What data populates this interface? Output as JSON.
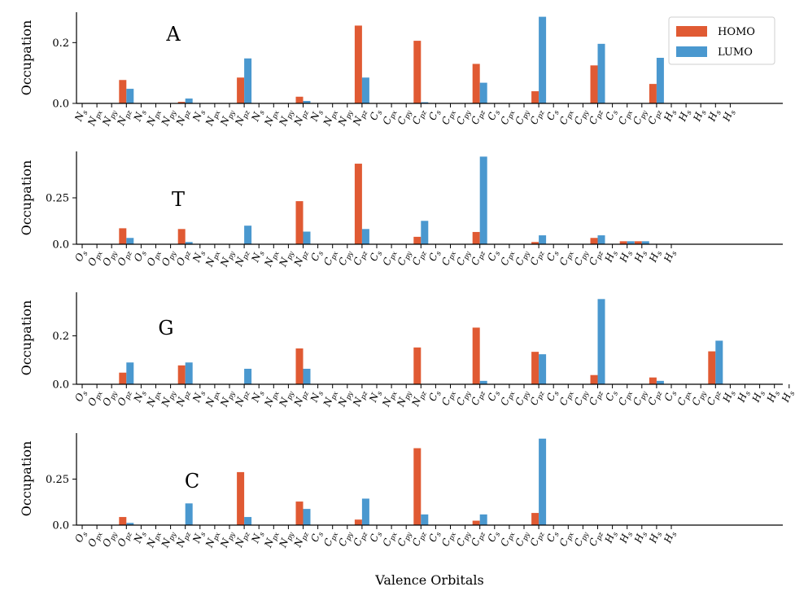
{
  "figure": {
    "xlabel": "Valence Orbitals"
  },
  "chart_data": [
    {
      "type": "bar",
      "panel_label": "A",
      "ylabel": "Occupation",
      "ylim": [
        0,
        0.3
      ],
      "yticks": [
        0.0,
        0.2
      ],
      "legend_placement": "top-right",
      "categories": [
        {
          "b": "N",
          "s": "s"
        },
        {
          "b": "N",
          "s": "px"
        },
        {
          "b": "N",
          "s": "py"
        },
        {
          "b": "N",
          "s": "pz"
        },
        {
          "b": "N",
          "s": "s"
        },
        {
          "b": "N",
          "s": "px"
        },
        {
          "b": "N",
          "s": "py"
        },
        {
          "b": "N",
          "s": "pz"
        },
        {
          "b": "N",
          "s": "s"
        },
        {
          "b": "N",
          "s": "px"
        },
        {
          "b": "N",
          "s": "py"
        },
        {
          "b": "N",
          "s": "pz"
        },
        {
          "b": "N",
          "s": "s"
        },
        {
          "b": "N",
          "s": "px"
        },
        {
          "b": "N",
          "s": "py"
        },
        {
          "b": "N",
          "s": "pz"
        },
        {
          "b": "N",
          "s": "s"
        },
        {
          "b": "N",
          "s": "px"
        },
        {
          "b": "N",
          "s": "py"
        },
        {
          "b": "N",
          "s": "pz"
        },
        {
          "b": "C",
          "s": "s"
        },
        {
          "b": "C",
          "s": "px"
        },
        {
          "b": "C",
          "s": "py"
        },
        {
          "b": "C",
          "s": "pz"
        },
        {
          "b": "C",
          "s": "s"
        },
        {
          "b": "C",
          "s": "px"
        },
        {
          "b": "C",
          "s": "py"
        },
        {
          "b": "C",
          "s": "pz"
        },
        {
          "b": "C",
          "s": "s"
        },
        {
          "b": "C",
          "s": "px"
        },
        {
          "b": "C",
          "s": "py"
        },
        {
          "b": "C",
          "s": "pz"
        },
        {
          "b": "C",
          "s": "s"
        },
        {
          "b": "C",
          "s": "px"
        },
        {
          "b": "C",
          "s": "py"
        },
        {
          "b": "C",
          "s": "pz"
        },
        {
          "b": "C",
          "s": "s"
        },
        {
          "b": "C",
          "s": "px"
        },
        {
          "b": "C",
          "s": "py"
        },
        {
          "b": "C",
          "s": "pz"
        },
        {
          "b": "H",
          "s": "s"
        },
        {
          "b": "H",
          "s": "s"
        },
        {
          "b": "H",
          "s": "s"
        },
        {
          "b": "H",
          "s": "s"
        },
        {
          "b": "H",
          "s": "s"
        }
      ],
      "series": [
        {
          "name": "HOMO",
          "color": "#e05a33",
          "values": [
            0,
            0,
            0,
            0.077,
            0,
            0,
            0,
            0.005,
            0,
            0,
            0,
            0.085,
            0,
            0,
            0,
            0.022,
            0,
            0,
            0,
            0.256,
            0,
            0,
            0,
            0.206,
            0,
            0,
            0,
            0.13,
            0,
            0,
            0,
            0.04,
            0,
            0,
            0,
            0.125,
            0,
            0,
            0,
            0.064,
            0,
            0,
            0,
            0,
            0
          ]
        },
        {
          "name": "LUMO",
          "color": "#4a98cf",
          "values": [
            0,
            0,
            0,
            0.048,
            0,
            0,
            0,
            0.016,
            0,
            0,
            0,
            0.148,
            0,
            0,
            0,
            0.008,
            0,
            0,
            0,
            0.085,
            0,
            0,
            0,
            0.004,
            0,
            0,
            0,
            0.068,
            0,
            0,
            0,
            0.285,
            0,
            0,
            0,
            0.196,
            0,
            0,
            0,
            0.15,
            0,
            0,
            0,
            0,
            0
          ]
        }
      ]
    },
    {
      "type": "bar",
      "panel_label": "T",
      "ylabel": "Occupation",
      "ylim": [
        0,
        0.5
      ],
      "yticks": [
        0.0,
        0.25
      ],
      "categories": [
        {
          "b": "O",
          "s": "s"
        },
        {
          "b": "O",
          "s": "px"
        },
        {
          "b": "O",
          "s": "py"
        },
        {
          "b": "O",
          "s": "pz"
        },
        {
          "b": "O",
          "s": "s"
        },
        {
          "b": "O",
          "s": "px"
        },
        {
          "b": "O",
          "s": "py"
        },
        {
          "b": "O",
          "s": "pz"
        },
        {
          "b": "N",
          "s": "s"
        },
        {
          "b": "N",
          "s": "px"
        },
        {
          "b": "N",
          "s": "py"
        },
        {
          "b": "N",
          "s": "pz"
        },
        {
          "b": "N",
          "s": "s"
        },
        {
          "b": "N",
          "s": "px"
        },
        {
          "b": "N",
          "s": "py"
        },
        {
          "b": "N",
          "s": "pz"
        },
        {
          "b": "C",
          "s": "s"
        },
        {
          "b": "C",
          "s": "px"
        },
        {
          "b": "C",
          "s": "py"
        },
        {
          "b": "C",
          "s": "pz"
        },
        {
          "b": "C",
          "s": "s"
        },
        {
          "b": "C",
          "s": "px"
        },
        {
          "b": "C",
          "s": "py"
        },
        {
          "b": "C",
          "s": "pz"
        },
        {
          "b": "C",
          "s": "s"
        },
        {
          "b": "C",
          "s": "px"
        },
        {
          "b": "C",
          "s": "py"
        },
        {
          "b": "C",
          "s": "pz"
        },
        {
          "b": "C",
          "s": "s"
        },
        {
          "b": "C",
          "s": "px"
        },
        {
          "b": "C",
          "s": "py"
        },
        {
          "b": "C",
          "s": "pz"
        },
        {
          "b": "C",
          "s": "s"
        },
        {
          "b": "C",
          "s": "px"
        },
        {
          "b": "C",
          "s": "py"
        },
        {
          "b": "C",
          "s": "pz"
        },
        {
          "b": "H",
          "s": "s"
        },
        {
          "b": "H",
          "s": "s"
        },
        {
          "b": "H",
          "s": "s"
        },
        {
          "b": "H",
          "s": "s"
        },
        {
          "b": "H",
          "s": "s"
        }
      ],
      "series": [
        {
          "name": "HOMO",
          "color": "#e05a33",
          "values": [
            0,
            0,
            0,
            0.086,
            0,
            0,
            0,
            0.082,
            0,
            0,
            0,
            0,
            0,
            0,
            0,
            0.232,
            0,
            0,
            0,
            0.434,
            0,
            0,
            0,
            0.04,
            0,
            0,
            0,
            0.066,
            0,
            0,
            0,
            0.012,
            0,
            0,
            0,
            0.034,
            0,
            0.016,
            0.016,
            0,
            0
          ]
        },
        {
          "name": "LUMO",
          "color": "#4a98cf",
          "values": [
            0,
            0,
            0,
            0.034,
            0,
            0,
            0,
            0.012,
            0,
            0,
            0,
            0.1,
            0,
            0,
            0,
            0.068,
            0,
            0,
            0,
            0.082,
            0,
            0,
            0,
            0.126,
            0,
            0,
            0,
            0.472,
            0,
            0,
            0,
            0.048,
            0,
            0,
            0,
            0.048,
            0,
            0.016,
            0.016,
            0,
            0
          ]
        }
      ]
    },
    {
      "type": "bar",
      "panel_label": "G",
      "ylabel": "Occupation",
      "ylim": [
        0,
        0.38
      ],
      "yticks": [
        0.0,
        0.2
      ],
      "categories": [
        {
          "b": "O",
          "s": "s"
        },
        {
          "b": "O",
          "s": "px"
        },
        {
          "b": "O",
          "s": "py"
        },
        {
          "b": "O",
          "s": "pz"
        },
        {
          "b": "N",
          "s": "s"
        },
        {
          "b": "N",
          "s": "px"
        },
        {
          "b": "N",
          "s": "py"
        },
        {
          "b": "N",
          "s": "pz"
        },
        {
          "b": "N",
          "s": "s"
        },
        {
          "b": "N",
          "s": "px"
        },
        {
          "b": "N",
          "s": "py"
        },
        {
          "b": "N",
          "s": "pz"
        },
        {
          "b": "N",
          "s": "s"
        },
        {
          "b": "N",
          "s": "px"
        },
        {
          "b": "N",
          "s": "py"
        },
        {
          "b": "N",
          "s": "pz"
        },
        {
          "b": "N",
          "s": "s"
        },
        {
          "b": "N",
          "s": "px"
        },
        {
          "b": "N",
          "s": "py"
        },
        {
          "b": "N",
          "s": "pz"
        },
        {
          "b": "N",
          "s": "s"
        },
        {
          "b": "N",
          "s": "px"
        },
        {
          "b": "N",
          "s": "py"
        },
        {
          "b": "N",
          "s": "pz"
        },
        {
          "b": "C",
          "s": "s"
        },
        {
          "b": "C",
          "s": "px"
        },
        {
          "b": "C",
          "s": "py"
        },
        {
          "b": "C",
          "s": "pz"
        },
        {
          "b": "C",
          "s": "s"
        },
        {
          "b": "C",
          "s": "px"
        },
        {
          "b": "C",
          "s": "py"
        },
        {
          "b": "C",
          "s": "pz"
        },
        {
          "b": "C",
          "s": "s"
        },
        {
          "b": "C",
          "s": "px"
        },
        {
          "b": "C",
          "s": "py"
        },
        {
          "b": "C",
          "s": "pz"
        },
        {
          "b": "C",
          "s": "s"
        },
        {
          "b": "C",
          "s": "px"
        },
        {
          "b": "C",
          "s": "py"
        },
        {
          "b": "C",
          "s": "pz"
        },
        {
          "b": "C",
          "s": "s"
        },
        {
          "b": "C",
          "s": "px"
        },
        {
          "b": "C",
          "s": "py"
        },
        {
          "b": "C",
          "s": "pz"
        },
        {
          "b": "H",
          "s": "s"
        },
        {
          "b": "H",
          "s": "s"
        },
        {
          "b": "H",
          "s": "s"
        },
        {
          "b": "H",
          "s": "s"
        },
        {
          "b": "H",
          "s": "s"
        }
      ],
      "series": [
        {
          "name": "HOMO",
          "color": "#e05a33",
          "values": [
            0,
            0,
            0,
            0.048,
            0,
            0,
            0,
            0.078,
            0,
            0,
            0,
            0,
            0,
            0,
            0,
            0.148,
            0,
            0,
            0,
            0,
            0,
            0,
            0,
            0.152,
            0,
            0,
            0,
            0.234,
            0,
            0,
            0,
            0.134,
            0,
            0,
            0,
            0.038,
            0,
            0,
            0,
            0.028,
            0,
            0,
            0,
            0.136,
            0,
            0,
            0,
            0,
            0
          ]
        },
        {
          "name": "LUMO",
          "color": "#4a98cf",
          "values": [
            0,
            0,
            0,
            0.09,
            0,
            0,
            0,
            0.09,
            0,
            0,
            0,
            0.064,
            0,
            0,
            0,
            0.064,
            0,
            0,
            0,
            0,
            0,
            0,
            0,
            0,
            0,
            0,
            0,
            0.014,
            0,
            0,
            0,
            0.124,
            0,
            0,
            0,
            0.352,
            0,
            0,
            0,
            0.014,
            0,
            0,
            0,
            0.18,
            0,
            0,
            0,
            0,
            0
          ]
        }
      ]
    },
    {
      "type": "bar",
      "panel_label": "C",
      "ylabel": "Occupation",
      "ylim": [
        0,
        0.5
      ],
      "yticks": [
        0.0,
        0.25
      ],
      "categories": [
        {
          "b": "O",
          "s": "s"
        },
        {
          "b": "O",
          "s": "px"
        },
        {
          "b": "O",
          "s": "py"
        },
        {
          "b": "O",
          "s": "pz"
        },
        {
          "b": "N",
          "s": "s"
        },
        {
          "b": "N",
          "s": "px"
        },
        {
          "b": "N",
          "s": "py"
        },
        {
          "b": "N",
          "s": "pz"
        },
        {
          "b": "N",
          "s": "s"
        },
        {
          "b": "N",
          "s": "px"
        },
        {
          "b": "N",
          "s": "py"
        },
        {
          "b": "N",
          "s": "pz"
        },
        {
          "b": "N",
          "s": "s"
        },
        {
          "b": "N",
          "s": "px"
        },
        {
          "b": "N",
          "s": "py"
        },
        {
          "b": "N",
          "s": "pz"
        },
        {
          "b": "C",
          "s": "s"
        },
        {
          "b": "C",
          "s": "px"
        },
        {
          "b": "C",
          "s": "py"
        },
        {
          "b": "C",
          "s": "pz"
        },
        {
          "b": "C",
          "s": "s"
        },
        {
          "b": "C",
          "s": "px"
        },
        {
          "b": "C",
          "s": "py"
        },
        {
          "b": "C",
          "s": "pz"
        },
        {
          "b": "C",
          "s": "s"
        },
        {
          "b": "C",
          "s": "px"
        },
        {
          "b": "C",
          "s": "py"
        },
        {
          "b": "C",
          "s": "pz"
        },
        {
          "b": "C",
          "s": "s"
        },
        {
          "b": "C",
          "s": "px"
        },
        {
          "b": "C",
          "s": "py"
        },
        {
          "b": "C",
          "s": "pz"
        },
        {
          "b": "C",
          "s": "s"
        },
        {
          "b": "C",
          "s": "px"
        },
        {
          "b": "C",
          "s": "py"
        },
        {
          "b": "C",
          "s": "pz"
        },
        {
          "b": "H",
          "s": "s"
        },
        {
          "b": "H",
          "s": "s"
        },
        {
          "b": "H",
          "s": "s"
        },
        {
          "b": "H",
          "s": "s"
        },
        {
          "b": "H",
          "s": "s"
        }
      ],
      "series": [
        {
          "name": "HOMO",
          "color": "#e05a33",
          "values": [
            0,
            0,
            0,
            0.044,
            0,
            0,
            0,
            0,
            0,
            0,
            0,
            0.288,
            0,
            0,
            0,
            0.128,
            0,
            0,
            0,
            0.03,
            0,
            0,
            0,
            0.418,
            0,
            0,
            0,
            0.024,
            0,
            0,
            0,
            0.066,
            0,
            0,
            0,
            0,
            0,
            0,
            0,
            0,
            0
          ]
        },
        {
          "name": "LUMO",
          "color": "#4a98cf",
          "values": [
            0,
            0,
            0,
            0.012,
            0,
            0,
            0,
            0.118,
            0,
            0,
            0,
            0.044,
            0,
            0,
            0,
            0.088,
            0,
            0,
            0,
            0.144,
            0,
            0,
            0,
            0.058,
            0,
            0,
            0,
            0.058,
            0,
            0,
            0,
            0.47,
            0,
            0,
            0,
            0,
            0,
            0,
            0,
            0,
            0
          ]
        }
      ]
    }
  ]
}
